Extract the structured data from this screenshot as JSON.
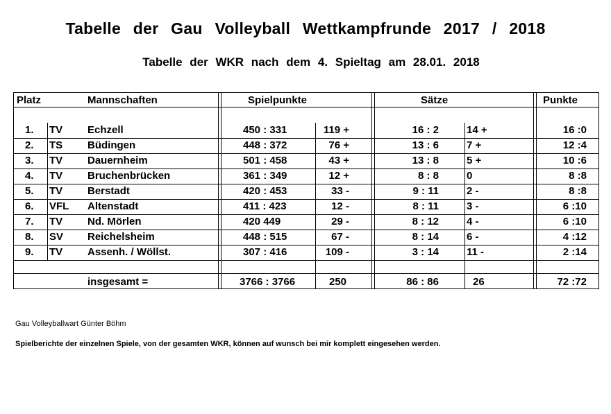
{
  "title": "Tabelle der Gau Volleyball Wettkampfrunde 2017 / 2018",
  "subtitle": "Tabelle der WKR nach dem 4. Spieltag am 28.01. 2018",
  "headers": {
    "platz": "Platz",
    "mannschaften": "Mannschaften",
    "spielpunkte": "Spielpunkte",
    "saetze": "Sätze",
    "punkte": "Punkte"
  },
  "rows": [
    {
      "platz": "1.",
      "club": "TV",
      "team": "Echzell",
      "spielpunkte": "450 : 331",
      "sp_diff": "119 +",
      "saetze": "16 : 2",
      "s_diff": "14 +",
      "punkte": "16 :0"
    },
    {
      "platz": "2.",
      "club": "TS",
      "team": "Büdingen",
      "spielpunkte": "448 : 372",
      "sp_diff": "76 +",
      "saetze": "13 : 6",
      "s_diff": "7 +",
      "punkte": "12 :4"
    },
    {
      "platz": "3.",
      "club": "TV",
      "team": "Dauernheim",
      "spielpunkte": "501 : 458",
      "sp_diff": "43 +",
      "saetze": "13 : 8",
      "s_diff": "5 +",
      "punkte": "10 :6"
    },
    {
      "platz": "4.",
      "club": "TV",
      "team": "Bruchenbrücken",
      "spielpunkte": "361 : 349",
      "sp_diff": "12 +",
      "saetze": "8 : 8",
      "s_diff": "0",
      "punkte": "8 :8"
    },
    {
      "platz": "5.",
      "club": "TV",
      "team": "Berstadt",
      "spielpunkte": "420 : 453",
      "sp_diff": "33 -",
      "saetze": "9 : 11",
      "s_diff": "2 -",
      "punkte": "8 :8"
    },
    {
      "platz": "6.",
      "club": "VFL",
      "team": "Altenstadt",
      "spielpunkte": "411 : 423",
      "sp_diff": "12 -",
      "saetze": "8 : 11",
      "s_diff": "3 -",
      "punkte": "6 :10"
    },
    {
      "platz": "7.",
      "club": "TV",
      "team": "Nd. Mörlen",
      "spielpunkte": "420   449",
      "sp_diff": "29 -",
      "saetze": "8 : 12",
      "s_diff": "4 -",
      "punkte": "6 :10"
    },
    {
      "platz": "8.",
      "club": "SV",
      "team": "Reichelsheim",
      "spielpunkte": "448 : 515",
      "sp_diff": "67 -",
      "saetze": "8 : 14",
      "s_diff": "6 -",
      "punkte": "4 :12"
    },
    {
      "platz": "9.",
      "club": "TV",
      "team": "Assenh. / Wöllst.",
      "spielpunkte": "307 : 416",
      "sp_diff": "109 -",
      "saetze": "3 : 14",
      "s_diff": "11 -",
      "punkte": "2 :14"
    }
  ],
  "total": {
    "label": "insgesamt   =",
    "spielpunkte": "3766 : 3766",
    "sp_diff": "250",
    "saetze": "86 : 86",
    "s_diff": "26",
    "punkte": "72 :72"
  },
  "footer": {
    "author": "Gau Volleyballwart  Günter Böhm",
    "note": "Spielberichte der einzelnen Spiele, von der gesamten WKR, können auf wunsch bei mir komplett eingesehen werden."
  }
}
